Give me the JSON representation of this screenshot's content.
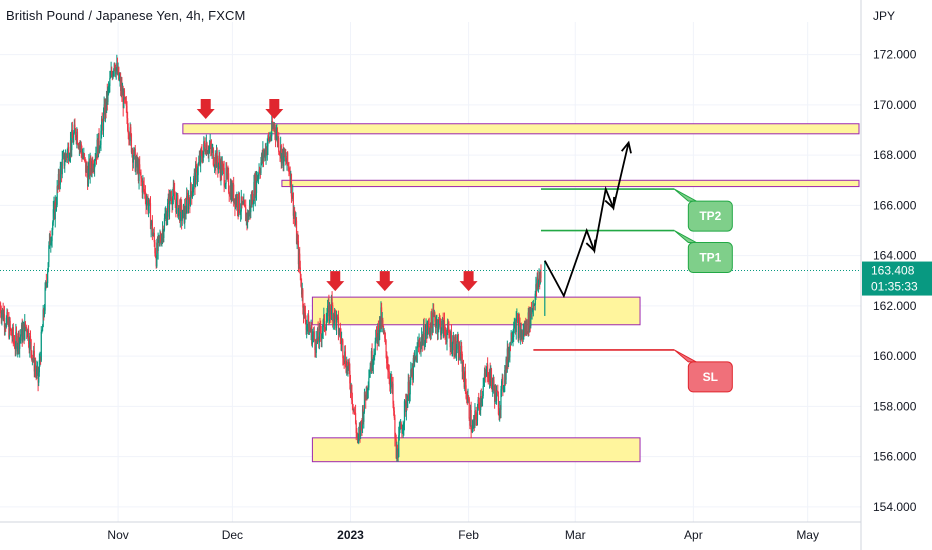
{
  "header": {
    "title": "British Pound / Japanese Yen, 4h, FXCM"
  },
  "price_axis": {
    "currency": "JPY",
    "ticks": [
      "172.000",
      "170.000",
      "168.000",
      "166.000",
      "164.000",
      "162.000",
      "160.000",
      "158.000",
      "156.000",
      "154.000"
    ],
    "tick_values": [
      172,
      170,
      168,
      166,
      164,
      162,
      160,
      158,
      156,
      154
    ]
  },
  "time_axis": {
    "labels": [
      "Nov",
      "Dec",
      "2023",
      "Feb",
      "Mar",
      "Apr",
      "May"
    ]
  },
  "last_price": {
    "value": "163.408",
    "countdown": "01:35:33",
    "color": "#089981"
  },
  "annotations": {
    "tp2": "TP2",
    "tp1": "TP1",
    "sl": "SL",
    "tp_color": "#7fcf8a",
    "sl_color": "#f0707a",
    "zone_fill": "#fff59d",
    "zone_stroke": "#9c27b0",
    "resistance_arrow_color": "#e0262e"
  },
  "chart_data": {
    "type": "candlestick",
    "title": "British Pound / Japanese Yen, 4h, FXCM",
    "x_range": [
      "2022-10-01",
      "2023-05-15"
    ],
    "y_range": [
      153.4,
      173.3
    ],
    "ylabel": "JPY",
    "close_path": [
      [
        "2022-10-01",
        162.0
      ],
      [
        "2022-10-05",
        160.5
      ],
      [
        "2022-10-08",
        161.2
      ],
      [
        "2022-10-11",
        159.0
      ],
      [
        "2022-10-14",
        164.5
      ],
      [
        "2022-10-17",
        167.5
      ],
      [
        "2022-10-21",
        169.0
      ],
      [
        "2022-10-24",
        167.2
      ],
      [
        "2022-10-27",
        168.5
      ],
      [
        "2022-10-31",
        171.8
      ],
      [
        "2022-11-03",
        169.8
      ],
      [
        "2022-11-05",
        168.0
      ],
      [
        "2022-11-09",
        166.0
      ],
      [
        "2022-11-11",
        164.0
      ],
      [
        "2022-11-15",
        166.5
      ],
      [
        "2022-11-18",
        165.5
      ],
      [
        "2022-11-21",
        167.0
      ],
      [
        "2022-11-24",
        168.5
      ],
      [
        "2022-11-28",
        167.5
      ],
      [
        "2022-12-01",
        166.5
      ],
      [
        "2022-12-05",
        165.5
      ],
      [
        "2022-12-08",
        167.5
      ],
      [
        "2022-12-12",
        169.2
      ],
      [
        "2022-12-14",
        168.0
      ],
      [
        "2022-12-16",
        167.5
      ],
      [
        "2022-12-19",
        163.0
      ],
      [
        "2022-12-20",
        161.5
      ],
      [
        "2022-12-23",
        160.5
      ],
      [
        "2022-12-27",
        162.0
      ],
      [
        "2022-12-29",
        161.0
      ],
      [
        "2023-01-01",
        159.0
      ],
      [
        "2023-01-03",
        156.5
      ],
      [
        "2023-01-06",
        159.5
      ],
      [
        "2023-01-09",
        161.5
      ],
      [
        "2023-01-12",
        158.5
      ],
      [
        "2023-01-13",
        156.0
      ],
      [
        "2023-01-16",
        158.5
      ],
      [
        "2023-01-19",
        160.5
      ],
      [
        "2023-01-23",
        161.5
      ],
      [
        "2023-01-26",
        161.0
      ],
      [
        "2023-01-30",
        160.0
      ],
      [
        "2023-02-02",
        157.0
      ],
      [
        "2023-02-06",
        159.5
      ],
      [
        "2023-02-09",
        158.0
      ],
      [
        "2023-02-13",
        161.5
      ],
      [
        "2023-02-15",
        160.8
      ],
      [
        "2023-02-17",
        161.5
      ],
      [
        "2023-02-20",
        163.4
      ]
    ],
    "zones": [
      {
        "from": "2022-11-18",
        "to": "2023-05-20",
        "low": 168.85,
        "high": 169.25
      },
      {
        "from": "2022-12-14",
        "to": "2023-05-20",
        "low": 166.75,
        "high": 167.0
      },
      {
        "from": "2022-12-22",
        "to": "2023-03-18",
        "low": 161.25,
        "high": 162.35
      },
      {
        "from": "2022-12-22",
        "to": "2023-03-18",
        "low": 155.8,
        "high": 156.75
      }
    ],
    "resistance_markers": [
      {
        "date": "2022-11-24",
        "price": 169.2
      },
      {
        "date": "2022-12-12",
        "price": 169.2
      },
      {
        "date": "2022-12-28",
        "price": 162.35
      },
      {
        "date": "2023-01-10",
        "price": 162.35
      },
      {
        "date": "2023-02-01",
        "price": 162.35
      }
    ],
    "levels": [
      {
        "name": "TP2",
        "price": 166.65,
        "from": "2023-02-20",
        "to": "2023-03-27"
      },
      {
        "name": "TP1",
        "price": 165.0,
        "from": "2023-02-20",
        "to": "2023-03-27"
      },
      {
        "name": "SL",
        "price": 160.25,
        "from": "2023-02-18",
        "to": "2023-03-27"
      }
    ],
    "projection": [
      [
        "2023-02-21",
        163.8
      ],
      [
        "2023-02-26",
        162.4
      ],
      [
        "2023-03-04",
        165.0
      ],
      [
        "2023-03-06",
        164.2
      ],
      [
        "2023-03-09",
        166.65
      ],
      [
        "2023-03-11",
        165.9
      ],
      [
        "2023-03-15",
        168.5
      ]
    ],
    "last_price": 163.408,
    "grid": true
  }
}
